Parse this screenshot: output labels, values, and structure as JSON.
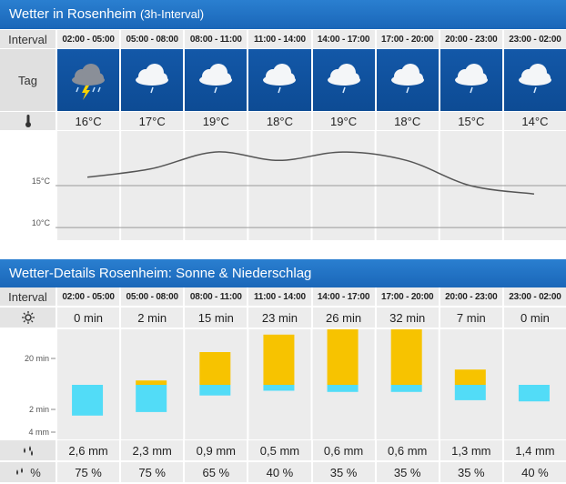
{
  "forecast": {
    "title": "Wetter in Rosenheim",
    "title_suffix": "(3h-Interval)",
    "row_labels": {
      "interval": "Interval",
      "tag": "Tag"
    },
    "intervals": [
      "02:00 - 05:00",
      "05:00 - 08:00",
      "08:00 - 11:00",
      "11:00 - 14:00",
      "14:00 - 17:00",
      "17:00 - 20:00",
      "20:00 - 23:00",
      "23:00 - 02:00"
    ],
    "icons": [
      "thunderstorm-icon",
      "cloud-rain-icon",
      "cloud-rain-icon",
      "cloud-rain-icon",
      "cloud-rain-icon",
      "cloud-rain-icon",
      "cloud-rain-icon",
      "cloud-rain-icon"
    ],
    "temperatures": [
      "16°C",
      "17°C",
      "19°C",
      "18°C",
      "19°C",
      "18°C",
      "15°C",
      "14°C"
    ]
  },
  "chart_data": [
    {
      "type": "line",
      "x": [
        "02:00 - 05:00",
        "05:00 - 08:00",
        "08:00 - 11:00",
        "11:00 - 14:00",
        "14:00 - 17:00",
        "17:00 - 20:00",
        "20:00 - 23:00",
        "23:00 - 02:00"
      ],
      "values": [
        16,
        17,
        19,
        18,
        19,
        18,
        15,
        14
      ],
      "yticks": [
        "15°C",
        "10°C"
      ],
      "ylim": [
        8.5,
        21.5
      ]
    },
    {
      "type": "bar",
      "categories": [
        "02:00 - 05:00",
        "05:00 - 08:00",
        "08:00 - 11:00",
        "11:00 - 14:00",
        "14:00 - 17:00",
        "17:00 - 20:00",
        "20:00 - 23:00",
        "23:00 - 02:00"
      ],
      "series": [
        {
          "values": [
            0,
            2,
            15,
            23,
            26,
            32,
            7,
            0
          ],
          "color": "#f7c300"
        },
        {
          "values": [
            2.6,
            2.3,
            0.9,
            0.5,
            0.6,
            0.6,
            1.3,
            1.4
          ],
          "color": "#52dcf7"
        }
      ],
      "yticks": [
        "20 min",
        "2 min",
        "4 mm"
      ]
    }
  ],
  "details": {
    "title": "Wetter-Details Rosenheim: Sonne & Niederschlag",
    "row_labels": {
      "interval": "Interval"
    },
    "sun_icon": "sun-icon",
    "rain_icon": "rain-drops-icon",
    "rain_prob_icon": "rain-probability-icon",
    "rain_prob_unit": "%",
    "sunshine": [
      "0 min",
      "2 min",
      "15 min",
      "23 min",
      "26 min",
      "32 min",
      "7 min",
      "0 min"
    ],
    "precipitation": [
      "2,6 mm",
      "2,3 mm",
      "0,9 mm",
      "0,5 mm",
      "0,6 mm",
      "0,6 mm",
      "1,3 mm",
      "1,4 mm"
    ],
    "probability": [
      "75 %",
      "75 %",
      "65 %",
      "40 %",
      "35 %",
      "35 %",
      "35 %",
      "40 %"
    ]
  },
  "colors": {
    "header_blue": "#1a66b8",
    "icon_bg": "#0d4b94",
    "sun_bar": "#f7c300",
    "rain_bar": "#52dcf7"
  }
}
